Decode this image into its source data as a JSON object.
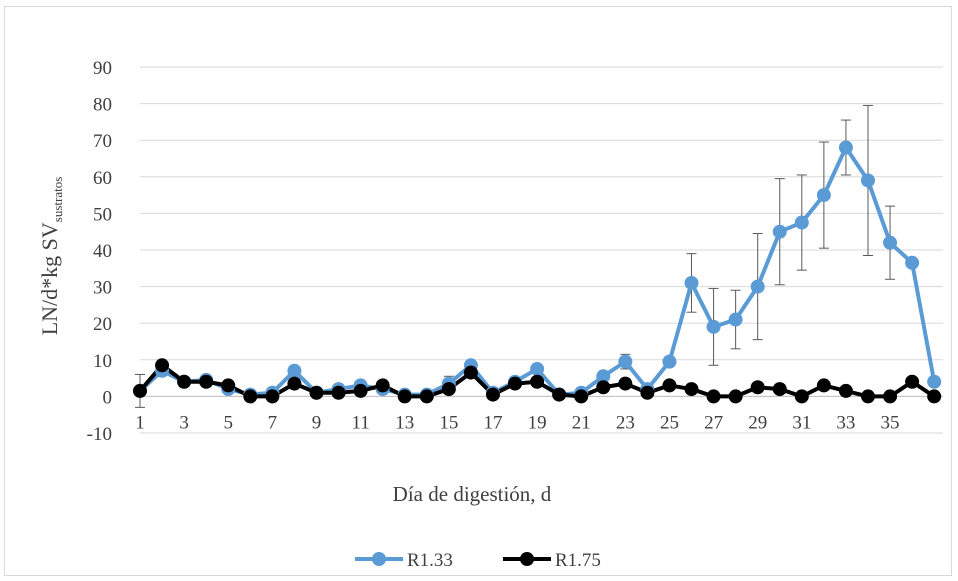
{
  "chart_data": {
    "type": "line",
    "title": "",
    "xlabel": "Día de digestión, d",
    "ylabel": {
      "main": "LN/d*kg SV",
      "subscript": "sustratos"
    },
    "ylim": [
      -10,
      90
    ],
    "yticks": [
      -10,
      0,
      10,
      20,
      30,
      40,
      50,
      60,
      70,
      80,
      90
    ],
    "xlim": [
      1,
      37
    ],
    "xticks": [
      1,
      3,
      5,
      7,
      9,
      11,
      13,
      15,
      17,
      19,
      21,
      23,
      25,
      27,
      29,
      31,
      33,
      35
    ],
    "grid": "horizontal",
    "legend_position": "bottom",
    "series": [
      {
        "name": "R1.33",
        "color": "#5b9bd5",
        "x": [
          1,
          2,
          3,
          4,
          5,
          6,
          7,
          8,
          9,
          10,
          11,
          12,
          13,
          14,
          15,
          16,
          17,
          18,
          19,
          20,
          21,
          22,
          23,
          24,
          25,
          26,
          27,
          28,
          29,
          30,
          31,
          32,
          33,
          34,
          35,
          36,
          37
        ],
        "values": [
          1.5,
          7.0,
          4.0,
          4.5,
          2.0,
          0.5,
          1.0,
          7.0,
          1.0,
          2.0,
          3.0,
          2.0,
          0.5,
          0.5,
          3.5,
          8.5,
          1.0,
          4.0,
          7.5,
          0.5,
          1.0,
          5.5,
          9.5,
          2.0,
          9.5,
          31.0,
          19.0,
          21.0,
          30.0,
          45.0,
          47.5,
          55.0,
          68.0,
          59.0,
          42.0,
          36.5,
          4.0
        ],
        "error": [
          4.5,
          0,
          0,
          0,
          0,
          0,
          0,
          0,
          0,
          0,
          0,
          0,
          0,
          0,
          2.0,
          0,
          0,
          0,
          0,
          0,
          0,
          0,
          2.0,
          0,
          0,
          8.0,
          10.5,
          8.0,
          14.5,
          14.5,
          13.0,
          14.5,
          7.5,
          20.5,
          10.0,
          0,
          0
        ]
      },
      {
        "name": "R1.75",
        "color": "#000000",
        "x": [
          1,
          2,
          3,
          4,
          5,
          6,
          7,
          8,
          9,
          10,
          11,
          12,
          13,
          14,
          15,
          16,
          17,
          18,
          19,
          20,
          21,
          22,
          23,
          24,
          25,
          26,
          27,
          28,
          29,
          30,
          31,
          32,
          33,
          34,
          35,
          36,
          37
        ],
        "values": [
          1.5,
          8.5,
          4.0,
          4.0,
          3.0,
          0.0,
          0.0,
          3.5,
          1.0,
          1.0,
          1.5,
          3.0,
          0.0,
          0.0,
          2.0,
          6.5,
          0.5,
          3.5,
          4.0,
          0.5,
          0.0,
          2.5,
          3.5,
          1.0,
          3.0,
          2.0,
          0.0,
          0.0,
          2.5,
          2.0,
          0.0,
          3.0,
          1.5,
          0.0,
          0.0,
          4.0,
          0.0
        ]
      }
    ]
  }
}
